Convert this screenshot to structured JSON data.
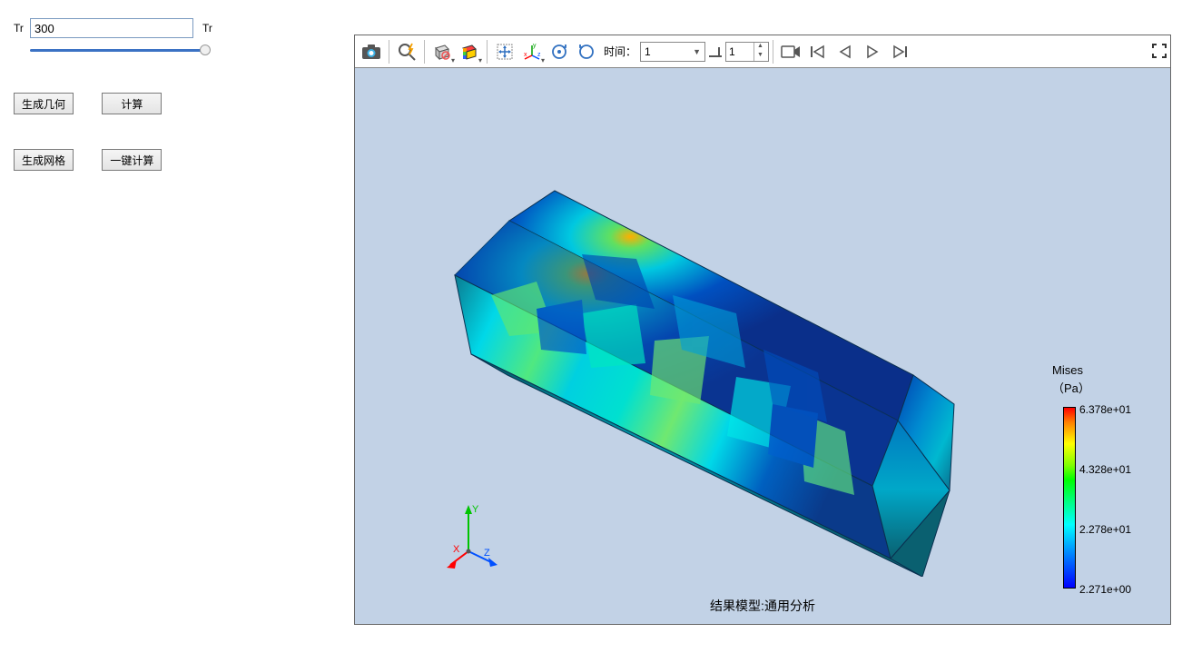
{
  "left_panel": {
    "param_label_left": "Tr",
    "param_label_right": "Tr",
    "param_value": "300",
    "slider_position": 1.0,
    "btn_generate_geom": "生成几何",
    "btn_calc": "计算",
    "btn_generate_mesh": "生成网格",
    "btn_oneclick_calc": "一键计算"
  },
  "toolbar": {
    "time_label": "时间：",
    "time_combo_value": "1",
    "time_spin_value": "1"
  },
  "viewport": {
    "background_color": "#c2d2e6",
    "result_label": "结果模型:通用分析",
    "triad": {
      "x_color": "#ff0000",
      "y_color": "#00c400",
      "z_color": "#0050ff"
    }
  },
  "legend": {
    "title": "Mises",
    "unit": "（Pa）",
    "ticks": [
      {
        "value": "6.378e+01",
        "pos": 0
      },
      {
        "value": "4.328e+01",
        "pos": 66
      },
      {
        "value": "2.278e+01",
        "pos": 132
      },
      {
        "value": "2.271e+00",
        "pos": 198
      }
    ],
    "gradient_stops": [
      {
        "c": "#ff0000",
        "p": 0
      },
      {
        "c": "#ff7f00",
        "p": 8
      },
      {
        "c": "#ffff00",
        "p": 20
      },
      {
        "c": "#80ff00",
        "p": 32
      },
      {
        "c": "#00ff00",
        "p": 40
      },
      {
        "c": "#00ff80",
        "p": 52
      },
      {
        "c": "#00ffff",
        "p": 65
      },
      {
        "c": "#0080ff",
        "p": 82
      },
      {
        "c": "#0000ff",
        "p": 100
      }
    ]
  },
  "model": {
    "type": "hex-prism-contour",
    "face_colors_dominant": [
      "#0a2f8a",
      "#1060c0",
      "#00a0d0",
      "#00dede",
      "#40e090",
      "#80e040"
    ],
    "edge_color": "#0a3050"
  }
}
